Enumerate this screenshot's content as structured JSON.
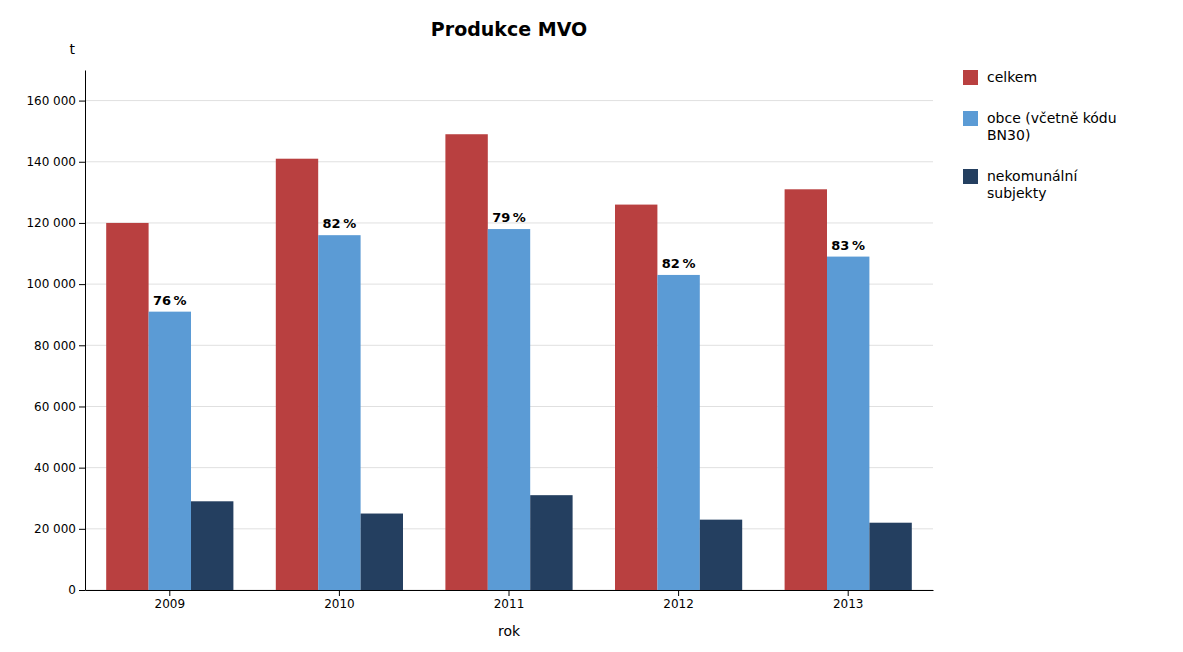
{
  "chart_data": {
    "type": "bar",
    "title": "Produkce MVO",
    "xlabel": "rok",
    "ylabel": "t",
    "categories": [
      "2009",
      "2010",
      "2011",
      "2012",
      "2013"
    ],
    "series": [
      {
        "name": "celkem",
        "color": "#b94040",
        "values": [
          120000,
          141000,
          149000,
          126000,
          131000
        ]
      },
      {
        "name": "obce (včetně kódu\nBN30)",
        "color": "#5b9bd5",
        "values": [
          91000,
          116000,
          118000,
          103000,
          109000
        ],
        "percentages": [
          {
            "value": 76,
            "label": "76 %"
          },
          {
            "value": 82,
            "label": "82 %"
          },
          {
            "value": 79,
            "label": "79 %"
          },
          {
            "value": 82,
            "label": "82 %"
          },
          {
            "value": 83,
            "label": "83 %"
          }
        ]
      },
      {
        "name": "nekomunální\nsubjekty",
        "color": "#243f60",
        "values": [
          29000,
          25000,
          31000,
          23000,
          22000
        ]
      }
    ],
    "ylim": [
      0,
      170000
    ],
    "yticks": [
      0,
      {
        "value": 20000,
        "label": "20 000"
      },
      {
        "value": 40000,
        "label": "40 000"
      },
      {
        "value": 60000,
        "label": "60 000"
      },
      {
        "value": 80000,
        "label": "80 000"
      },
      {
        "value": 100000,
        "label": "100 000"
      },
      {
        "value": 120000,
        "label": "120 000"
      },
      {
        "value": 140000,
        "label": "140 000"
      },
      {
        "value": 160000,
        "label": "160 000"
      }
    ],
    "grid": true,
    "legend": "right"
  }
}
